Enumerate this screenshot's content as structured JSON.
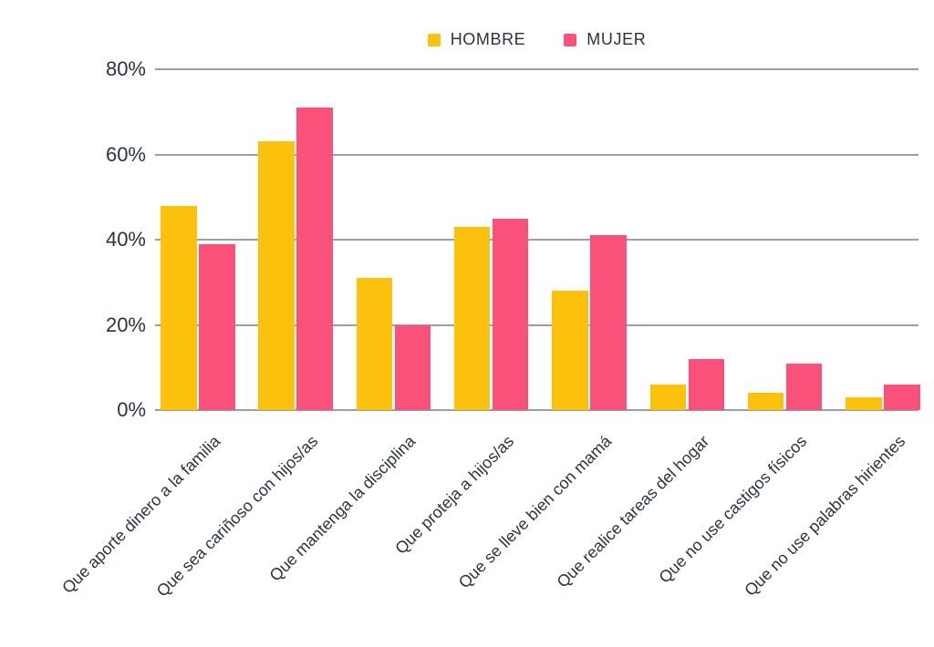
{
  "colors": {
    "hombre": "#FCC10D",
    "mujer": "#F9517A",
    "grid": "#98A0A7",
    "text": "#2A3440",
    "background": "#FFFFFF"
  },
  "legend": {
    "position": "top-center",
    "items": [
      {
        "label": "HOMBRE",
        "color": "#FCC10D"
      },
      {
        "label": "MUJER",
        "color": "#F9517A"
      }
    ]
  },
  "chart_data": {
    "type": "bar",
    "categories": [
      "Que aporte dinero a la familia",
      "Que sea cariñoso con hijos/as",
      "Que mantenga la disciplina",
      "Que proteja a hijos/as",
      "Que se lleve bien con mamá",
      "Que realice tareas del hogar",
      "Que no use castigos físicos",
      "Que no use palabras hirientes"
    ],
    "series": [
      {
        "name": "HOMBRE",
        "values": [
          48,
          63,
          31,
          43,
          28,
          6,
          4,
          3
        ]
      },
      {
        "name": "MUJER",
        "values": [
          39,
          71,
          20,
          45,
          41,
          12,
          11,
          6
        ]
      }
    ],
    "title": "",
    "xlabel": "",
    "ylabel": "",
    "ylim": [
      0,
      80
    ],
    "yticks": [
      0,
      20,
      40,
      60,
      80
    ],
    "ytick_format": "{v}%",
    "grid": "horizontal",
    "legend_position": "top-center",
    "x_label_rotation_deg": -45
  }
}
